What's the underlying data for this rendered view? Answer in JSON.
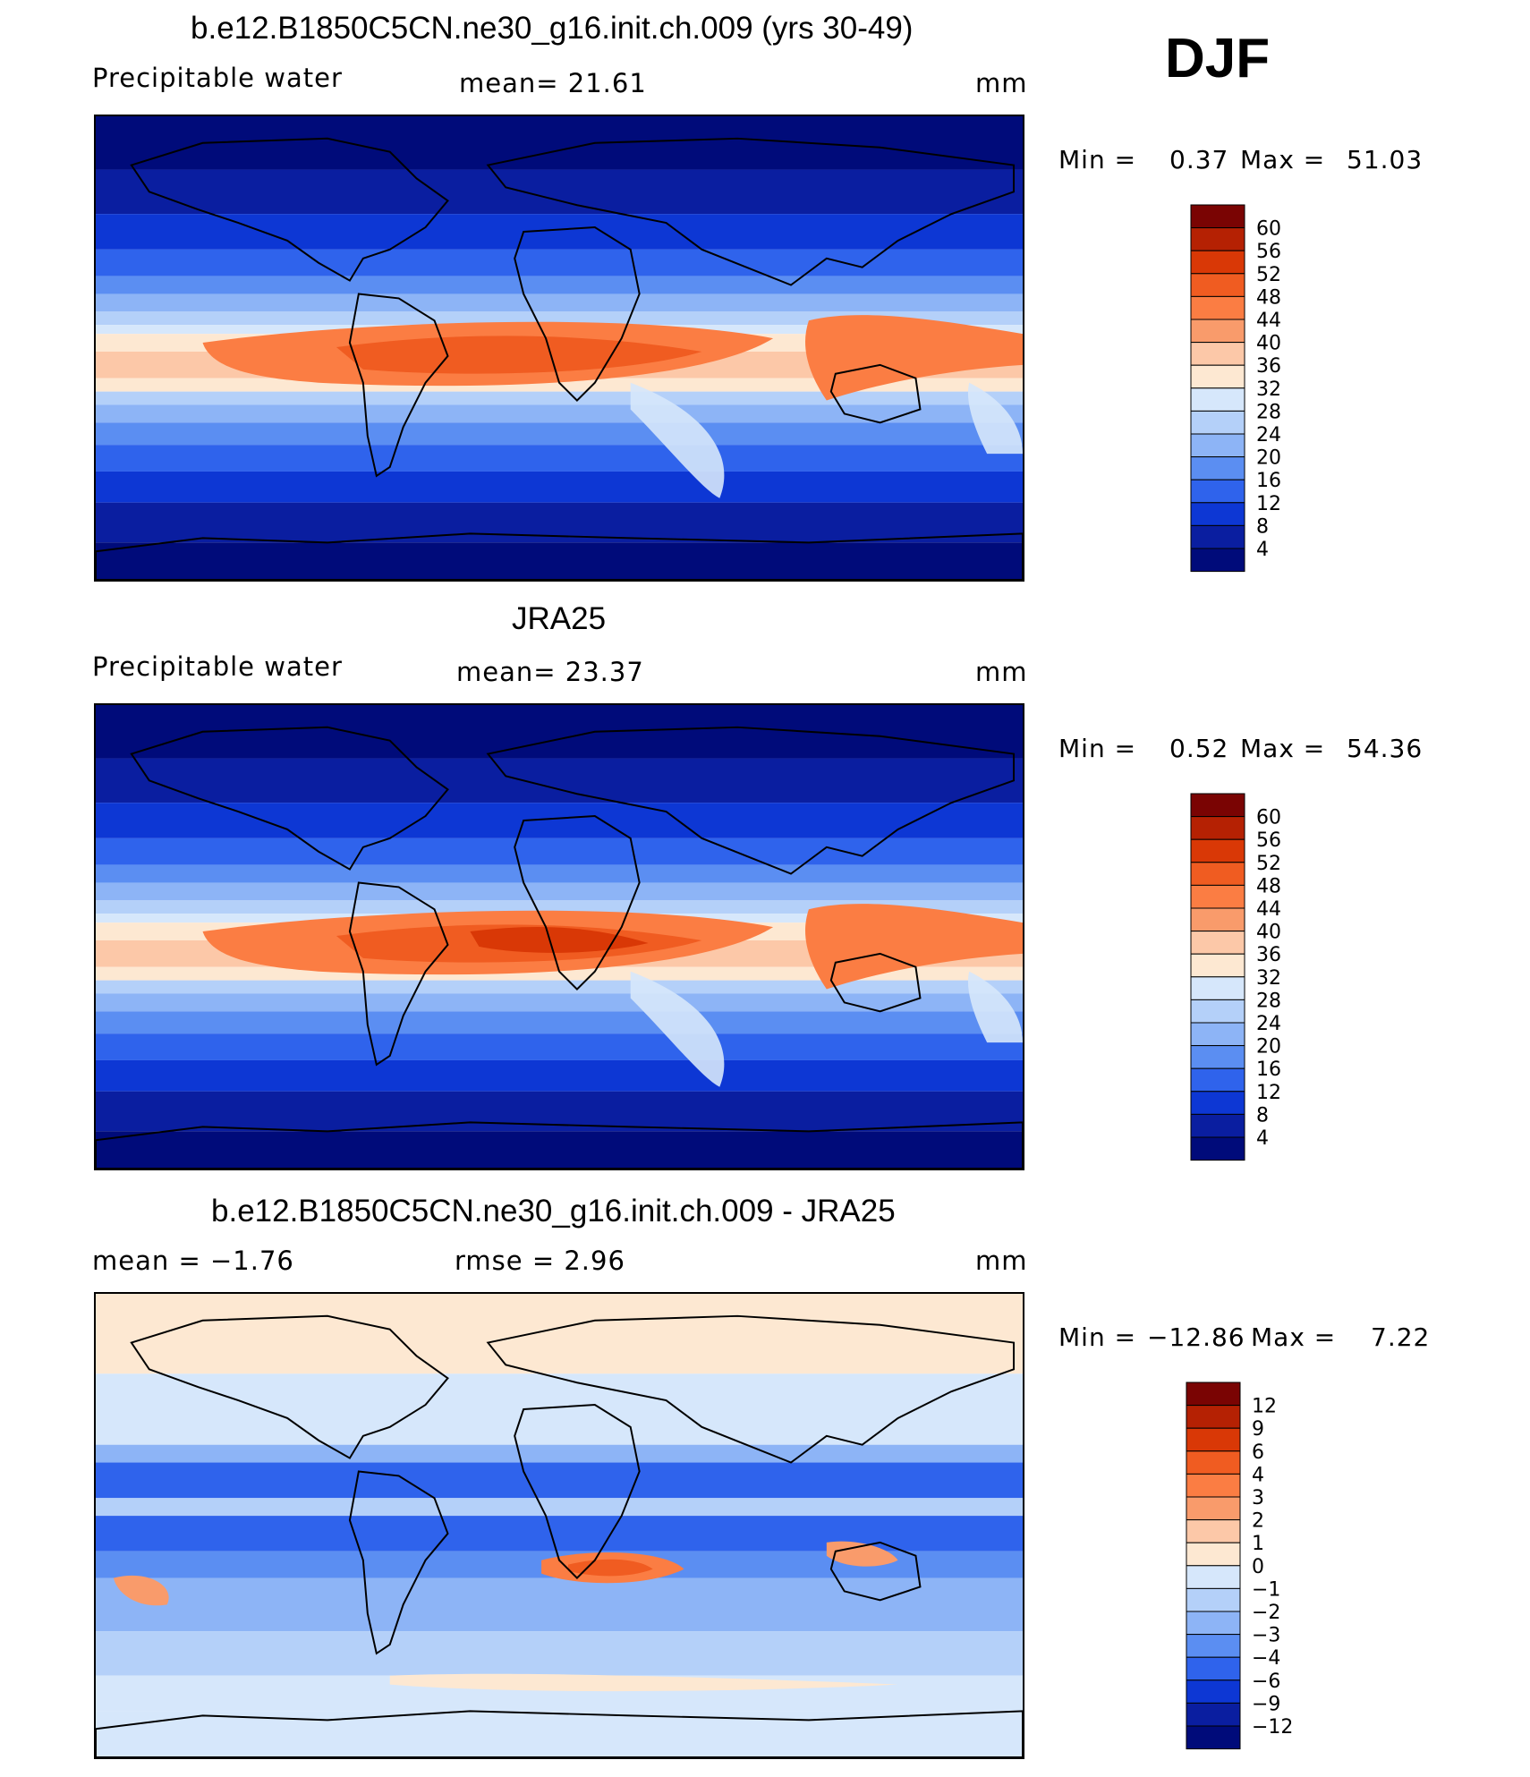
{
  "season": "DJF",
  "panels": [
    {
      "title": "b.e12.B1850C5CN.ne30_g16.init.ch.009 (yrs 30-49)",
      "left": "Precipitable  water",
      "center": "mean=   21.61",
      "right": "mm",
      "min_label": "Min  =",
      "min_value": "0.37",
      "max_label": "Max  =",
      "max_value": "51.03",
      "colorbar_ticks": [
        "60",
        "56",
        "52",
        "48",
        "44",
        "40",
        "36",
        "32",
        "28",
        "24",
        "20",
        "16",
        "12",
        "8",
        "4"
      ],
      "colors": [
        "#7a0403",
        "#b52103",
        "#d93806",
        "#f05c21",
        "#fb7d43",
        "#f99b6b",
        "#fcc8a8",
        "#fde8d2",
        "#d6e7fb",
        "#b4d0f9",
        "#8db4f6",
        "#5b8ef2",
        "#2f63ec",
        "#0d37d4",
        "#0a1ea0",
        "#000b7a"
      ]
    },
    {
      "title": "JRA25",
      "left": "Precipitable  water",
      "center": "mean=   23.37",
      "right": "mm",
      "min_label": "Min  =",
      "min_value": "0.52",
      "max_label": "Max  =",
      "max_value": "54.36",
      "colorbar_ticks": [
        "60",
        "56",
        "52",
        "48",
        "44",
        "40",
        "36",
        "32",
        "28",
        "24",
        "20",
        "16",
        "12",
        "8",
        "4"
      ],
      "colors": [
        "#7a0403",
        "#b52103",
        "#d93806",
        "#f05c21",
        "#fb7d43",
        "#f99b6b",
        "#fcc8a8",
        "#fde8d2",
        "#d6e7fb",
        "#b4d0f9",
        "#8db4f6",
        "#5b8ef2",
        "#2f63ec",
        "#0d37d4",
        "#0a1ea0",
        "#000b7a"
      ]
    },
    {
      "title": "b.e12.B1850C5CN.ne30_g16.init.ch.009 - JRA25",
      "left": "mean  =    −1.76",
      "center": "rmse  =     2.96",
      "right": "mm",
      "min_label": "Min  =",
      "min_value": "−12.86",
      "max_label": "Max  =",
      "max_value": "7.22",
      "colorbar_ticks": [
        "12",
        "9",
        "6",
        "4",
        "3",
        "2",
        "1",
        "0",
        "−1",
        "−2",
        "−3",
        "−4",
        "−6",
        "−9",
        "−12"
      ],
      "colors": [
        "#7a0403",
        "#b52103",
        "#d93806",
        "#f05c21",
        "#fb7d43",
        "#f99b6b",
        "#fcc8a8",
        "#fde8d2",
        "#d6e7fb",
        "#b4d0f9",
        "#8db4f6",
        "#5b8ef2",
        "#2f63ec",
        "#0d37d4",
        "#0a1ea0",
        "#000b7a"
      ]
    }
  ],
  "chart_data": [
    {
      "type": "heatmap",
      "title": "b.e12.B1850C5CN.ne30_g16.init.ch.009 (yrs 30-49)",
      "variable": "Precipitable  water",
      "units": "mm",
      "mean": 21.61,
      "min": 0.37,
      "max": 51.03,
      "levels": [
        4,
        8,
        12,
        16,
        20,
        24,
        28,
        32,
        36,
        40,
        44,
        48,
        52,
        56,
        60
      ]
    },
    {
      "type": "heatmap",
      "title": "JRA25",
      "variable": "Precipitable  water",
      "units": "mm",
      "mean": 23.37,
      "min": 0.52,
      "max": 54.36,
      "levels": [
        4,
        8,
        12,
        16,
        20,
        24,
        28,
        32,
        36,
        40,
        44,
        48,
        52,
        56,
        60
      ]
    },
    {
      "type": "heatmap",
      "title": "b.e12.B1850C5CN.ne30_g16.init.ch.009 - JRA25",
      "units": "mm",
      "mean": -1.76,
      "rmse": 2.96,
      "min": -12.86,
      "max": 7.22,
      "levels": [
        -12,
        -9,
        -6,
        -4,
        -3,
        -2,
        -1,
        0,
        1,
        2,
        3,
        4,
        6,
        9,
        12
      ]
    }
  ]
}
